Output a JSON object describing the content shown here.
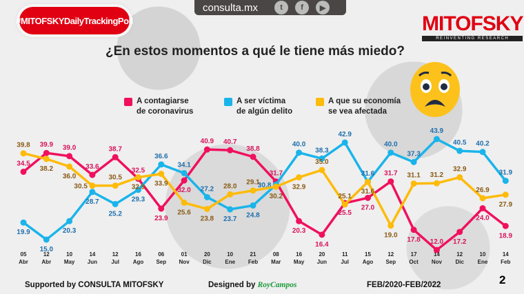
{
  "header": {
    "hashtag": "#MITOFSKYDailyTrackingPoll",
    "site": "consulta.mx",
    "social": [
      "twitter-icon",
      "facebook-icon",
      "youtube-icon"
    ],
    "logo": "MITOFSKY",
    "logo_sub": "REINVENTING RESEARCH"
  },
  "footer": {
    "supported": "Supported by   CONSULTA   MITOFSKY",
    "designed": "Designed by",
    "designer": "RoyCampos",
    "range": "FEB/2020-FEB/2022",
    "page": "2"
  },
  "chart_data": {
    "type": "line",
    "title": "¿En estos momentos a qué le tiene más miedo?",
    "categories": [
      [
        "05",
        "Abr"
      ],
      [
        "12",
        "Abr"
      ],
      [
        "10",
        "May"
      ],
      [
        "14",
        "Jun"
      ],
      [
        "12",
        "Jul"
      ],
      [
        "16",
        "Ago"
      ],
      [
        "06",
        "Sep"
      ],
      [
        "01",
        "Nov"
      ],
      [
        "20",
        "Dic"
      ],
      [
        "10",
        "Ene"
      ],
      [
        "21",
        "Feb"
      ],
      [
        "08",
        "Mar"
      ],
      [
        "16",
        "May"
      ],
      [
        "20",
        "Jun"
      ],
      [
        "11",
        "Jul"
      ],
      [
        "15",
        "Ago"
      ],
      [
        "12",
        "Sep"
      ],
      [
        "17",
        "Oct"
      ],
      [
        "14",
        "Nov"
      ],
      [
        "12",
        "Dic"
      ],
      [
        "10",
        "Ene"
      ],
      [
        "14",
        "Feb"
      ]
    ],
    "series": [
      {
        "name": "A contagiarse de coronavirus",
        "legend": [
          "A contagiarse",
          "de coronavirus"
        ],
        "color": "#f0105e",
        "label_color": "#d8135a",
        "values": [
          34.5,
          39.9,
          39.0,
          33.6,
          38.7,
          32.5,
          23.9,
          32.0,
          40.9,
          40.7,
          38.8,
          31.7,
          20.3,
          16.4,
          25.5,
          27.0,
          31.7,
          17.8,
          12.0,
          17.2,
          24.0,
          18.9
        ]
      },
      {
        "name": "A ser víctima de algún delito",
        "legend": [
          "A ser víctima",
          "de algún delito"
        ],
        "color": "#1ab4ea",
        "label_color": "#1e6fae",
        "values": [
          19.9,
          15.0,
          20.3,
          28.7,
          25.2,
          29.3,
          36.6,
          34.1,
          27.2,
          23.7,
          24.8,
          30.8,
          40.0,
          38.3,
          42.9,
          31.6,
          40.0,
          37.3,
          43.9,
          40.5,
          40.2,
          31.9
        ]
      },
      {
        "name": "A que su economía se vea afectada",
        "legend": [
          "A que su economía",
          "se vea afectada"
        ],
        "color": "#fdbb0a",
        "label_color": "#8a5a14",
        "values": [
          39.8,
          38.2,
          36.0,
          30.5,
          30.5,
          32.9,
          33.9,
          25.6,
          23.8,
          28.0,
          29.1,
          30.2,
          32.9,
          35.0,
          25.1,
          31.6,
          19.0,
          31.1,
          31.2,
          32.9,
          26.9,
          27.9
        ]
      }
    ],
    "ylim": [
      12,
      44
    ]
  }
}
